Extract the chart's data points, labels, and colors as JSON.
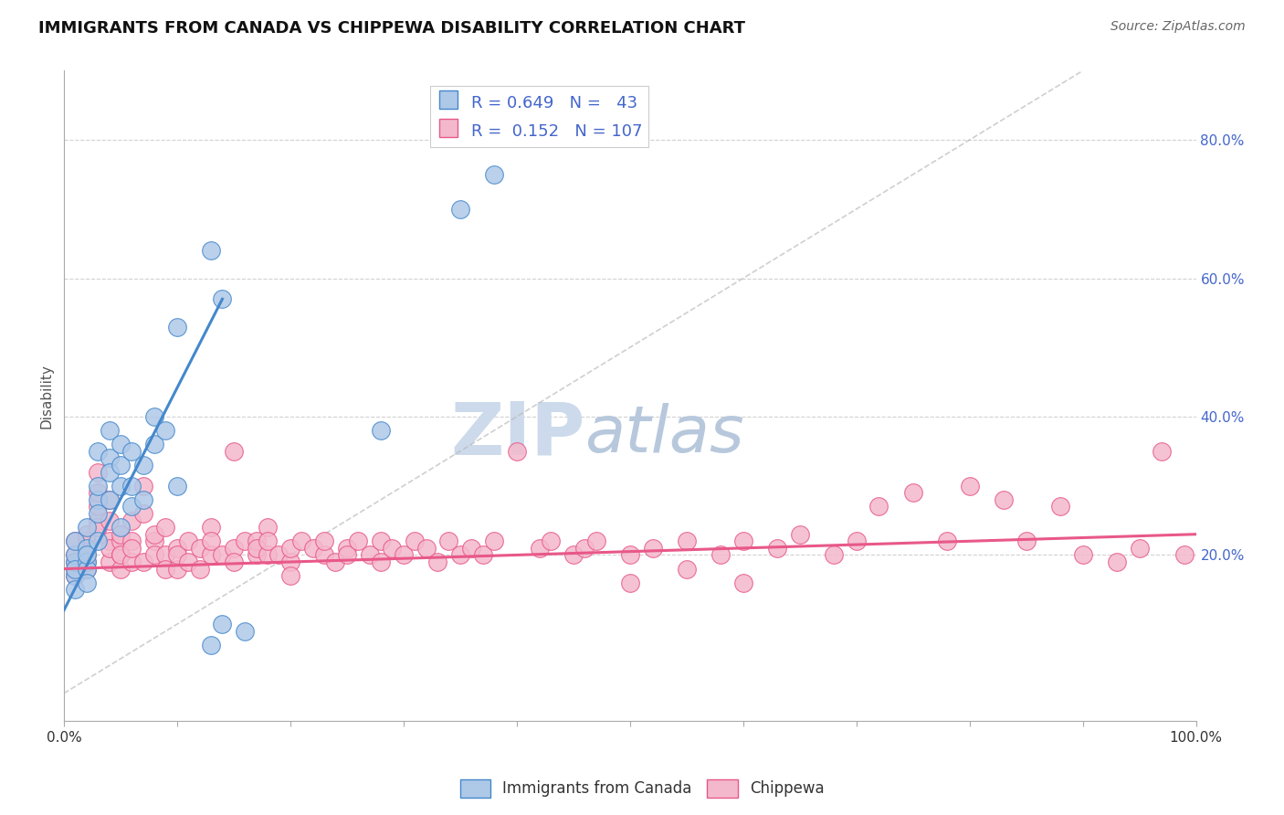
{
  "title": "IMMIGRANTS FROM CANADA VS CHIPPEWA DISABILITY CORRELATION CHART",
  "source_text": "Source: ZipAtlas.com",
  "ylabel": "Disability",
  "xlim": [
    0,
    100
  ],
  "ylim": [
    -4,
    90
  ],
  "x_ticks": [
    0,
    10,
    20,
    30,
    40,
    50,
    60,
    70,
    80,
    90,
    100
  ],
  "x_tick_labels": [
    "0.0%",
    "",
    "",
    "",
    "",
    "",
    "",
    "",
    "",
    "",
    "100.0%"
  ],
  "y_ticks": [
    20,
    40,
    60,
    80
  ],
  "y_tick_labels": [
    "20.0%",
    "40.0%",
    "60.0%",
    "80.0%"
  ],
  "color_blue": "#aec8e8",
  "color_pink": "#f4b8cc",
  "color_blue_line": "#4488cc",
  "color_pink_line": "#e85888",
  "color_diag_line": "#bbbbbb",
  "watermark_color": "#dde8f4",
  "blue_points": [
    [
      1,
      17
    ],
    [
      1,
      19
    ],
    [
      1,
      20
    ],
    [
      1,
      22
    ],
    [
      1,
      15
    ],
    [
      1,
      18
    ],
    [
      2,
      21
    ],
    [
      2,
      19
    ],
    [
      2,
      24
    ],
    [
      2,
      18
    ],
    [
      2,
      16
    ],
    [
      2,
      20
    ],
    [
      3,
      22
    ],
    [
      3,
      28
    ],
    [
      3,
      30
    ],
    [
      3,
      26
    ],
    [
      3,
      35
    ],
    [
      4,
      34
    ],
    [
      4,
      38
    ],
    [
      4,
      32
    ],
    [
      4,
      28
    ],
    [
      5,
      30
    ],
    [
      5,
      33
    ],
    [
      5,
      36
    ],
    [
      5,
      24
    ],
    [
      6,
      35
    ],
    [
      6,
      30
    ],
    [
      6,
      27
    ],
    [
      7,
      28
    ],
    [
      7,
      33
    ],
    [
      8,
      40
    ],
    [
      8,
      36
    ],
    [
      9,
      38
    ],
    [
      10,
      30
    ],
    [
      13,
      7
    ],
    [
      14,
      10
    ],
    [
      16,
      9
    ],
    [
      13,
      64
    ],
    [
      14,
      57
    ],
    [
      28,
      38
    ],
    [
      35,
      70
    ],
    [
      38,
      75
    ],
    [
      10,
      53
    ]
  ],
  "pink_points": [
    [
      1,
      19
    ],
    [
      1,
      20
    ],
    [
      1,
      22
    ],
    [
      1,
      17
    ],
    [
      1,
      18
    ],
    [
      2,
      21
    ],
    [
      2,
      20
    ],
    [
      2,
      22
    ],
    [
      2,
      19
    ],
    [
      2,
      18
    ],
    [
      2,
      23
    ],
    [
      3,
      25
    ],
    [
      3,
      27
    ],
    [
      3,
      24
    ],
    [
      3,
      29
    ],
    [
      3,
      32
    ],
    [
      4,
      22
    ],
    [
      4,
      25
    ],
    [
      4,
      28
    ],
    [
      4,
      19
    ],
    [
      4,
      21
    ],
    [
      5,
      20
    ],
    [
      5,
      22
    ],
    [
      5,
      23
    ],
    [
      5,
      18
    ],
    [
      5,
      20
    ],
    [
      6,
      22
    ],
    [
      6,
      19
    ],
    [
      6,
      25
    ],
    [
      6,
      21
    ],
    [
      7,
      19
    ],
    [
      7,
      26
    ],
    [
      7,
      30
    ],
    [
      8,
      22
    ],
    [
      8,
      20
    ],
    [
      8,
      23
    ],
    [
      9,
      20
    ],
    [
      9,
      18
    ],
    [
      9,
      24
    ],
    [
      10,
      18
    ],
    [
      10,
      21
    ],
    [
      10,
      20
    ],
    [
      11,
      22
    ],
    [
      11,
      19
    ],
    [
      12,
      21
    ],
    [
      12,
      18
    ],
    [
      13,
      24
    ],
    [
      13,
      20
    ],
    [
      13,
      22
    ],
    [
      14,
      20
    ],
    [
      15,
      21
    ],
    [
      15,
      19
    ],
    [
      15,
      35
    ],
    [
      16,
      22
    ],
    [
      17,
      20
    ],
    [
      17,
      22
    ],
    [
      17,
      21
    ],
    [
      18,
      20
    ],
    [
      18,
      24
    ],
    [
      18,
      22
    ],
    [
      19,
      20
    ],
    [
      20,
      19
    ],
    [
      20,
      21
    ],
    [
      20,
      17
    ],
    [
      21,
      22
    ],
    [
      22,
      21
    ],
    [
      23,
      20
    ],
    [
      23,
      22
    ],
    [
      24,
      19
    ],
    [
      25,
      21
    ],
    [
      25,
      20
    ],
    [
      26,
      22
    ],
    [
      27,
      20
    ],
    [
      28,
      22
    ],
    [
      28,
      19
    ],
    [
      29,
      21
    ],
    [
      30,
      20
    ],
    [
      31,
      22
    ],
    [
      32,
      21
    ],
    [
      33,
      19
    ],
    [
      34,
      22
    ],
    [
      35,
      20
    ],
    [
      36,
      21
    ],
    [
      37,
      20
    ],
    [
      38,
      22
    ],
    [
      40,
      35
    ],
    [
      42,
      21
    ],
    [
      43,
      22
    ],
    [
      45,
      20
    ],
    [
      46,
      21
    ],
    [
      47,
      22
    ],
    [
      50,
      20
    ],
    [
      52,
      21
    ],
    [
      55,
      22
    ],
    [
      58,
      20
    ],
    [
      60,
      22
    ],
    [
      63,
      21
    ],
    [
      65,
      23
    ],
    [
      68,
      20
    ],
    [
      70,
      22
    ],
    [
      72,
      27
    ],
    [
      75,
      29
    ],
    [
      78,
      22
    ],
    [
      80,
      30
    ],
    [
      83,
      28
    ],
    [
      85,
      22
    ],
    [
      88,
      27
    ],
    [
      90,
      20
    ],
    [
      93,
      19
    ],
    [
      95,
      21
    ],
    [
      97,
      35
    ],
    [
      99,
      20
    ],
    [
      50,
      16
    ],
    [
      55,
      18
    ],
    [
      60,
      16
    ]
  ],
  "blue_line_x": [
    0,
    14
  ],
  "blue_line_y": [
    12,
    57
  ],
  "pink_line_x": [
    0,
    100
  ],
  "pink_line_y": [
    18,
    23
  ]
}
